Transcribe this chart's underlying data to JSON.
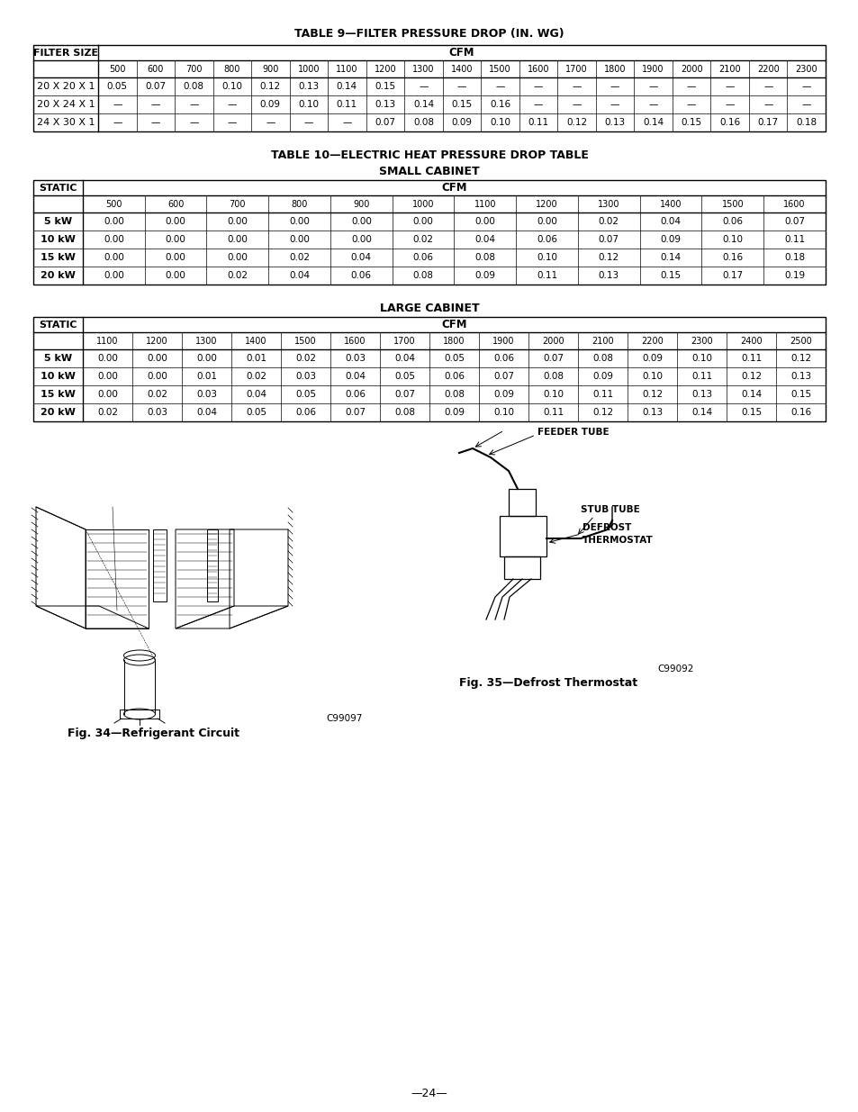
{
  "page_number": "24",
  "background_color": "#ffffff",
  "table9_title": "TABLE 9—FILTER PRESSURE DROP (IN. WG)",
  "table9_cfm_cols": [
    "500",
    "600",
    "700",
    "800",
    "900",
    "1000",
    "1100",
    "1200",
    "1300",
    "1400",
    "1500",
    "1600",
    "1700",
    "1800",
    "1900",
    "2000",
    "2100",
    "2200",
    "2300"
  ],
  "table9_rows": [
    [
      "20 X 20 X 1",
      "0.05",
      "0.07",
      "0.08",
      "0.10",
      "0.12",
      "0.13",
      "0.14",
      "0.15",
      "—",
      "—",
      "—",
      "—",
      "—",
      "—",
      "—",
      "—",
      "—",
      "—",
      "—"
    ],
    [
      "20 X 24 X 1",
      "—",
      "—",
      "—",
      "—",
      "0.09",
      "0.10",
      "0.11",
      "0.13",
      "0.14",
      "0.15",
      "0.16",
      "—",
      "—",
      "—",
      "—",
      "—",
      "—",
      "—",
      "—"
    ],
    [
      "24 X 30 X 1",
      "—",
      "—",
      "—",
      "—",
      "—",
      "—",
      "—",
      "0.07",
      "0.08",
      "0.09",
      "0.10",
      "0.11",
      "0.12",
      "0.13",
      "0.14",
      "0.15",
      "0.16",
      "0.17",
      "0.18"
    ]
  ],
  "table10_title1": "TABLE 10—ELECTRIC HEAT PRESSURE DROP TABLE",
  "table10_title2": "SMALL CABINET",
  "table10_small_cfm_cols": [
    "500",
    "600",
    "700",
    "800",
    "900",
    "1000",
    "1100",
    "1200",
    "1300",
    "1400",
    "1500",
    "1600"
  ],
  "table10_small_rows": [
    [
      "5 kW",
      "0.00",
      "0.00",
      "0.00",
      "0.00",
      "0.00",
      "0.00",
      "0.00",
      "0.00",
      "0.02",
      "0.04",
      "0.06",
      "0.07"
    ],
    [
      "10 kW",
      "0.00",
      "0.00",
      "0.00",
      "0.00",
      "0.00",
      "0.02",
      "0.04",
      "0.06",
      "0.07",
      "0.09",
      "0.10",
      "0.11"
    ],
    [
      "15 kW",
      "0.00",
      "0.00",
      "0.00",
      "0.02",
      "0.04",
      "0.06",
      "0.08",
      "0.10",
      "0.12",
      "0.14",
      "0.16",
      "0.18"
    ],
    [
      "20 kW",
      "0.00",
      "0.00",
      "0.02",
      "0.04",
      "0.06",
      "0.08",
      "0.09",
      "0.11",
      "0.13",
      "0.15",
      "0.17",
      "0.19"
    ]
  ],
  "table10_large_title": "LARGE CABINET",
  "table10_large_cfm_cols": [
    "1100",
    "1200",
    "1300",
    "1400",
    "1500",
    "1600",
    "1700",
    "1800",
    "1900",
    "2000",
    "2100",
    "2200",
    "2300",
    "2400",
    "2500"
  ],
  "table10_large_rows": [
    [
      "5 kW",
      "0.00",
      "0.00",
      "0.00",
      "0.01",
      "0.02",
      "0.03",
      "0.04",
      "0.05",
      "0.06",
      "0.07",
      "0.08",
      "0.09",
      "0.10",
      "0.11",
      "0.12"
    ],
    [
      "10 kW",
      "0.00",
      "0.00",
      "0.01",
      "0.02",
      "0.03",
      "0.04",
      "0.05",
      "0.06",
      "0.07",
      "0.08",
      "0.09",
      "0.10",
      "0.11",
      "0.12",
      "0.13"
    ],
    [
      "15 kW",
      "0.00",
      "0.02",
      "0.03",
      "0.04",
      "0.05",
      "0.06",
      "0.07",
      "0.08",
      "0.09",
      "0.10",
      "0.11",
      "0.12",
      "0.13",
      "0.14",
      "0.15"
    ],
    [
      "20 kW",
      "0.02",
      "0.03",
      "0.04",
      "0.05",
      "0.06",
      "0.07",
      "0.08",
      "0.09",
      "0.10",
      "0.11",
      "0.12",
      "0.13",
      "0.14",
      "0.15",
      "0.16"
    ]
  ],
  "fig34_caption": "Fig. 34—Refrigerant Circuit",
  "fig34_code": "C99097",
  "fig35_caption": "Fig. 35—Defrost Thermostat",
  "fig35_code": "C99092"
}
